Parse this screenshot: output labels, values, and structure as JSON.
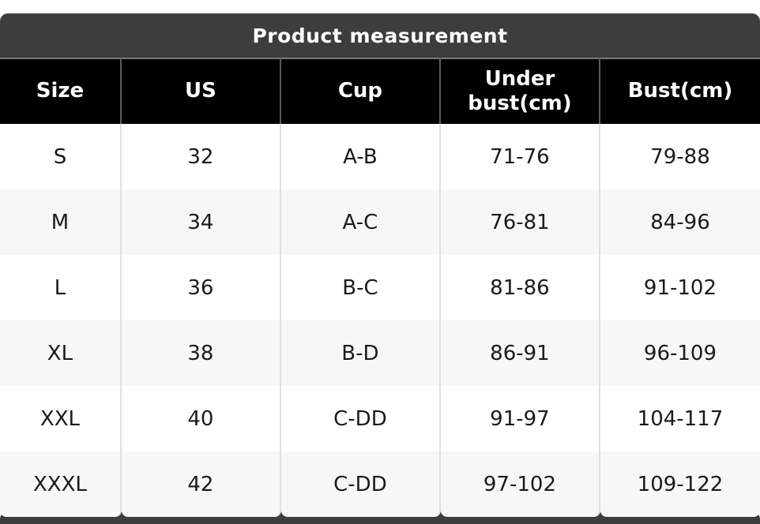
{
  "chart_data": {
    "type": "table",
    "title": "Product measurement",
    "columns": [
      "Size",
      "US",
      "Cup",
      "Under bust(cm)",
      "Bust(cm)"
    ],
    "rows": [
      [
        "S",
        "32",
        "A-B",
        "71-76",
        "79-88"
      ],
      [
        "M",
        "34",
        "A-C",
        "76-81",
        "84-96"
      ],
      [
        "L",
        "36",
        "B-C",
        "81-86",
        "91-102"
      ],
      [
        "XL",
        "38",
        "B-D",
        "86-91",
        "96-109"
      ],
      [
        "XXL",
        "40",
        "C-DD",
        "91-97",
        "104-117"
      ],
      [
        "XXXL",
        "42",
        "C-DD",
        "97-102",
        "109-122"
      ]
    ],
    "layout": {
      "zebra_striping": true,
      "title_position": "top-center"
    }
  },
  "colors": {
    "title_bar_bg": "#3d3d3d",
    "title_text": "#ffffff",
    "header_bg": "#000000",
    "header_text": "#ffffff",
    "row_bg_odd": "#ffffff",
    "row_bg_even": "#f7f7f7",
    "body_text": "#1a1a1a",
    "separator_header": "#5a5a5a",
    "separator_body": "#e0e0e0",
    "bottom_strip_bg": "#3d3d3d"
  }
}
